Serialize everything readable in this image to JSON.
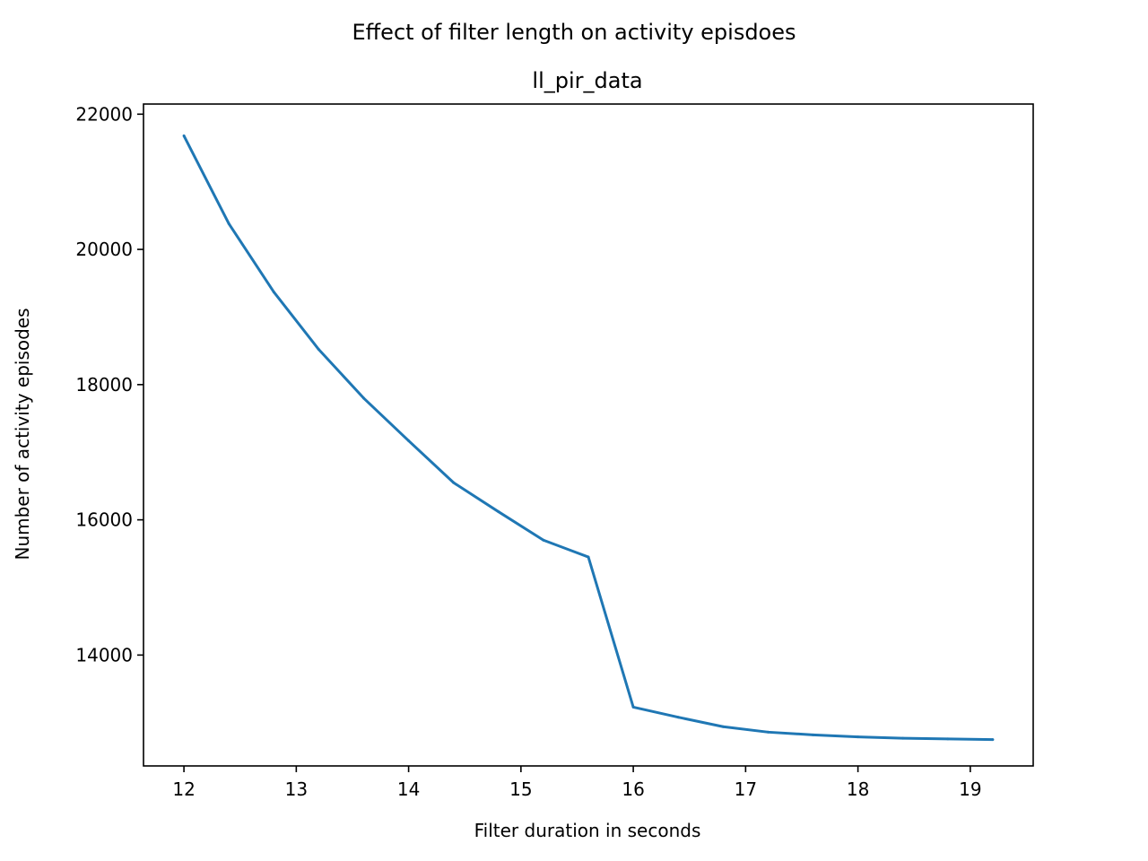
{
  "chart_data": {
    "type": "line",
    "suptitle": "Effect of filter length on activity episdoes",
    "title": "ll_pir_data",
    "xlabel": "Filter duration in seconds",
    "ylabel": "Number of activity episodes",
    "xlim": [
      11.64,
      19.56
    ],
    "ylim": [
      12360,
      22150
    ],
    "xticks": [
      12,
      13,
      14,
      15,
      16,
      17,
      18,
      19
    ],
    "yticks": [
      14000,
      16000,
      18000,
      20000,
      22000
    ],
    "grid": false,
    "series": [
      {
        "color": "#1f77b4",
        "x": [
          12.0,
          12.4,
          12.8,
          13.2,
          13.6,
          14.0,
          14.4,
          14.8,
          15.2,
          15.6,
          16.0,
          16.4,
          16.8,
          17.2,
          17.6,
          18.0,
          18.4,
          18.8,
          19.2
        ],
        "y": [
          21680,
          20380,
          19370,
          18520,
          17800,
          17170,
          16550,
          16120,
          15700,
          15450,
          13230,
          13080,
          12940,
          12860,
          12820,
          12790,
          12770,
          12760,
          12750
        ]
      }
    ]
  }
}
